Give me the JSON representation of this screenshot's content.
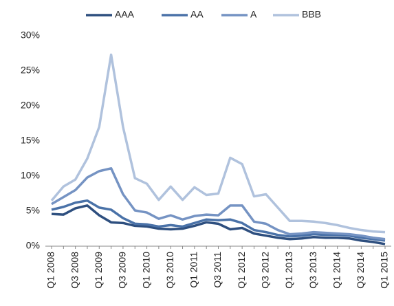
{
  "chart_data": {
    "type": "line",
    "categories": [
      "Q1 2008",
      null,
      "Q3 2008",
      null,
      "Q1 2009",
      null,
      "Q3 2009",
      null,
      "Q1 2010",
      null,
      "Q3 2010",
      null,
      "Q1 2011",
      null,
      "Q3 2011",
      null,
      "Q1 2012",
      null,
      "Q3 2012",
      null,
      "Q1 2013",
      null,
      "Q3 2013",
      null,
      "Q1 2014",
      null,
      "Q3 2014",
      null,
      "Q1 2015"
    ],
    "series": [
      {
        "name": "AAA",
        "color": "#2e4f7f",
        "values": [
          4.6,
          4.5,
          5.4,
          5.8,
          4.4,
          3.4,
          3.3,
          2.9,
          2.8,
          2.5,
          2.4,
          2.5,
          2.9,
          3.4,
          3.2,
          2.4,
          2.6,
          1.8,
          1.5,
          1.2,
          1.0,
          1.1,
          1.3,
          1.2,
          1.2,
          1.1,
          0.8,
          0.6,
          0.3
        ]
      },
      {
        "name": "AA",
        "color": "#4a72a8",
        "values": [
          5.2,
          5.6,
          6.2,
          6.5,
          5.5,
          5.2,
          4.0,
          3.2,
          3.1,
          2.8,
          3.0,
          2.8,
          3.3,
          3.8,
          3.7,
          3.8,
          3.3,
          2.3,
          2.0,
          1.6,
          1.4,
          1.5,
          1.7,
          1.6,
          1.6,
          1.5,
          1.2,
          1.0,
          0.8
        ]
      },
      {
        "name": "A",
        "color": "#7593c3",
        "values": [
          6.0,
          7.0,
          8.0,
          9.8,
          10.7,
          11.1,
          7.4,
          5.1,
          4.8,
          3.9,
          4.4,
          3.8,
          4.3,
          4.5,
          4.4,
          5.8,
          5.8,
          3.5,
          3.2,
          2.3,
          1.7,
          1.8,
          2.0,
          1.9,
          1.8,
          1.7,
          1.5,
          1.2,
          1.0
        ]
      },
      {
        "name": "BBB",
        "color": "#b0c2dd",
        "values": [
          6.5,
          8.5,
          9.5,
          12.5,
          17.0,
          27.3,
          17.0,
          9.7,
          8.9,
          6.6,
          8.5,
          6.6,
          8.4,
          7.3,
          7.5,
          12.6,
          11.7,
          7.1,
          7.4,
          5.5,
          3.6,
          3.6,
          3.5,
          3.3,
          3.0,
          2.6,
          2.3,
          2.1,
          2.0
        ]
      }
    ],
    "ylim": [
      0,
      30
    ],
    "yticks": [
      {
        "value": 0,
        "label": "0%"
      },
      {
        "value": 5,
        "label": "5%"
      },
      {
        "value": 10,
        "label": "10%"
      },
      {
        "value": 15,
        "label": "15%"
      },
      {
        "value": 20,
        "label": "20%"
      },
      {
        "value": 25,
        "label": "25%"
      },
      {
        "value": 30,
        "label": "30%"
      }
    ],
    "legend": "top"
  }
}
